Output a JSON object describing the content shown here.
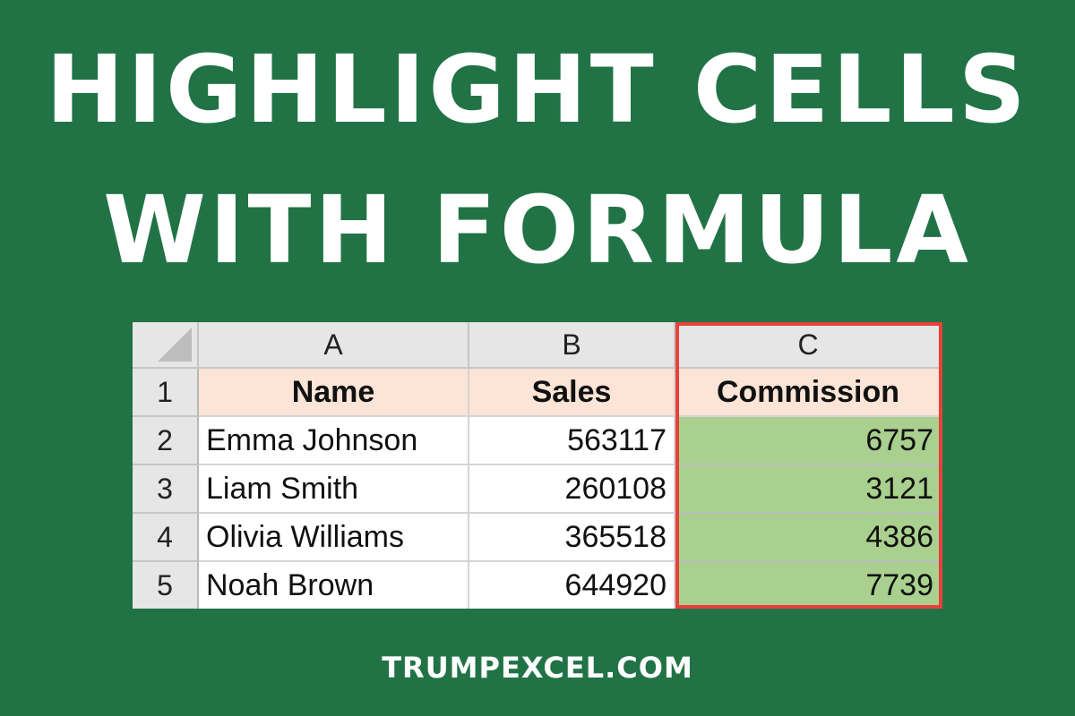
{
  "colors": {
    "background": "#217346",
    "title_text": "#ffffff",
    "header_fill": "#fce4d6",
    "highlight_fill": "#a9d08e",
    "highlight_border": "#e8403a"
  },
  "title": {
    "line1": "HIGHLIGHT CELLS",
    "line2": "WITH FORMULA"
  },
  "sheet": {
    "column_headers": [
      "A",
      "B",
      "C"
    ],
    "row_numbers": [
      "1",
      "2",
      "3",
      "4",
      "5"
    ],
    "header_row": {
      "name": "Name",
      "sales": "Sales",
      "commission": "Commission"
    },
    "rows": [
      {
        "name": "Emma Johnson",
        "sales": "563117",
        "commission": "6757"
      },
      {
        "name": "Liam Smith",
        "sales": "260108",
        "commission": "3121"
      },
      {
        "name": "Olivia Williams",
        "sales": "365518",
        "commission": "4386"
      },
      {
        "name": "Noah Brown",
        "sales": "644920",
        "commission": "7739"
      }
    ],
    "highlighted_column": "C"
  },
  "footer": {
    "site": "TRUMPEXCEL.COM"
  }
}
